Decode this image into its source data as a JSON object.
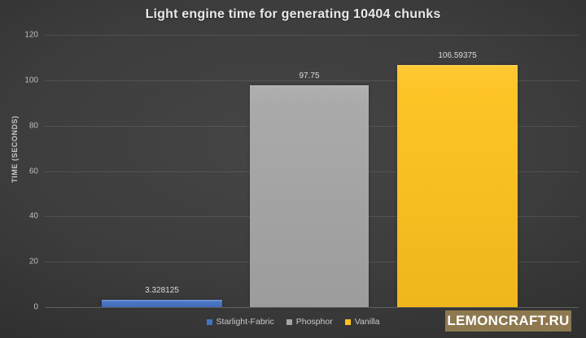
{
  "title": "Light engine time for generating 10404 chunks",
  "chart_data": {
    "type": "bar",
    "categories": [
      "Starlight-Fabric",
      "Phosphor",
      "Vanilla"
    ],
    "values": [
      3.328125,
      97.75,
      106.59375
    ],
    "value_labels": [
      "3.328125",
      "97.75",
      "106.59375"
    ],
    "colors": [
      "#4472c4",
      "#a6a6a6",
      "#fec21e"
    ],
    "title": "Light engine time for generating 10404 chunks",
    "xlabel": "",
    "ylabel": "TIME (SECONDS)",
    "ylim": [
      0,
      120
    ],
    "grid": true,
    "legend_position": "bottom"
  },
  "y_axis": {
    "label": "TIME (SECONDS)",
    "ticks": [
      "120",
      "100",
      "80",
      "60",
      "40",
      "20",
      "0"
    ]
  },
  "legend": {
    "items": [
      {
        "label": "Starlight-Fabric",
        "color": "#4472c4"
      },
      {
        "label": "Phosphor",
        "color": "#a6a6a6"
      },
      {
        "label": "Vanilla",
        "color": "#fec21e"
      }
    ]
  },
  "watermark": {
    "text": "LEMONCRAFT.RU",
    "bg": "#8d7850"
  }
}
